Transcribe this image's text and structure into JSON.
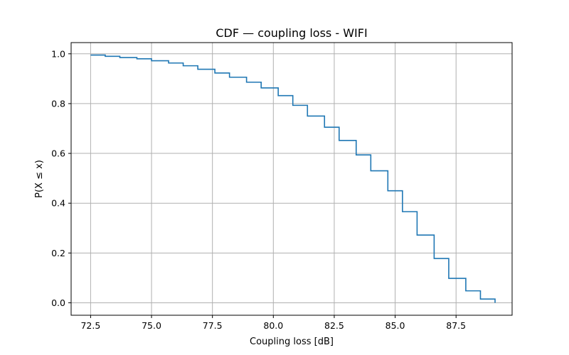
{
  "chart_data": {
    "type": "line",
    "step": "post",
    "title": "CDF — coupling loss - WIFI",
    "xlabel": "Coupling loss [dB]",
    "ylabel": "P(X ≤ x)",
    "xlim": [
      71.7,
      89.8
    ],
    "ylim": [
      -0.05,
      1.045
    ],
    "xticks": [
      72.5,
      75.0,
      77.5,
      80.0,
      82.5,
      85.0,
      87.5
    ],
    "xtick_labels": [
      "72.5",
      "75.0",
      "77.5",
      "80.0",
      "82.5",
      "85.0",
      "87.5"
    ],
    "yticks": [
      0.0,
      0.2,
      0.4,
      0.6,
      0.8,
      1.0
    ],
    "ytick_labels": [
      "0.0",
      "0.2",
      "0.4",
      "0.6",
      "0.8",
      "1.0"
    ],
    "grid": true,
    "color": "#1f77b4",
    "series": [
      {
        "x": [
          72.5,
          73.1,
          73.7,
          74.4,
          75.0,
          75.7,
          76.3,
          76.9,
          77.6,
          78.2,
          78.9,
          79.5,
          80.2,
          80.8,
          81.4,
          82.1,
          82.7,
          83.4,
          84.0,
          84.7,
          85.3,
          85.9,
          86.6,
          87.2,
          87.9,
          88.5,
          89.1
        ],
        "y": [
          0.995,
          0.99,
          0.985,
          0.98,
          0.972,
          0.963,
          0.952,
          0.938,
          0.923,
          0.906,
          0.886,
          0.863,
          0.832,
          0.793,
          0.75,
          0.705,
          0.652,
          0.594,
          0.53,
          0.45,
          0.366,
          0.272,
          0.178,
          0.098,
          0.048,
          0.015,
          0.0
        ]
      }
    ]
  }
}
